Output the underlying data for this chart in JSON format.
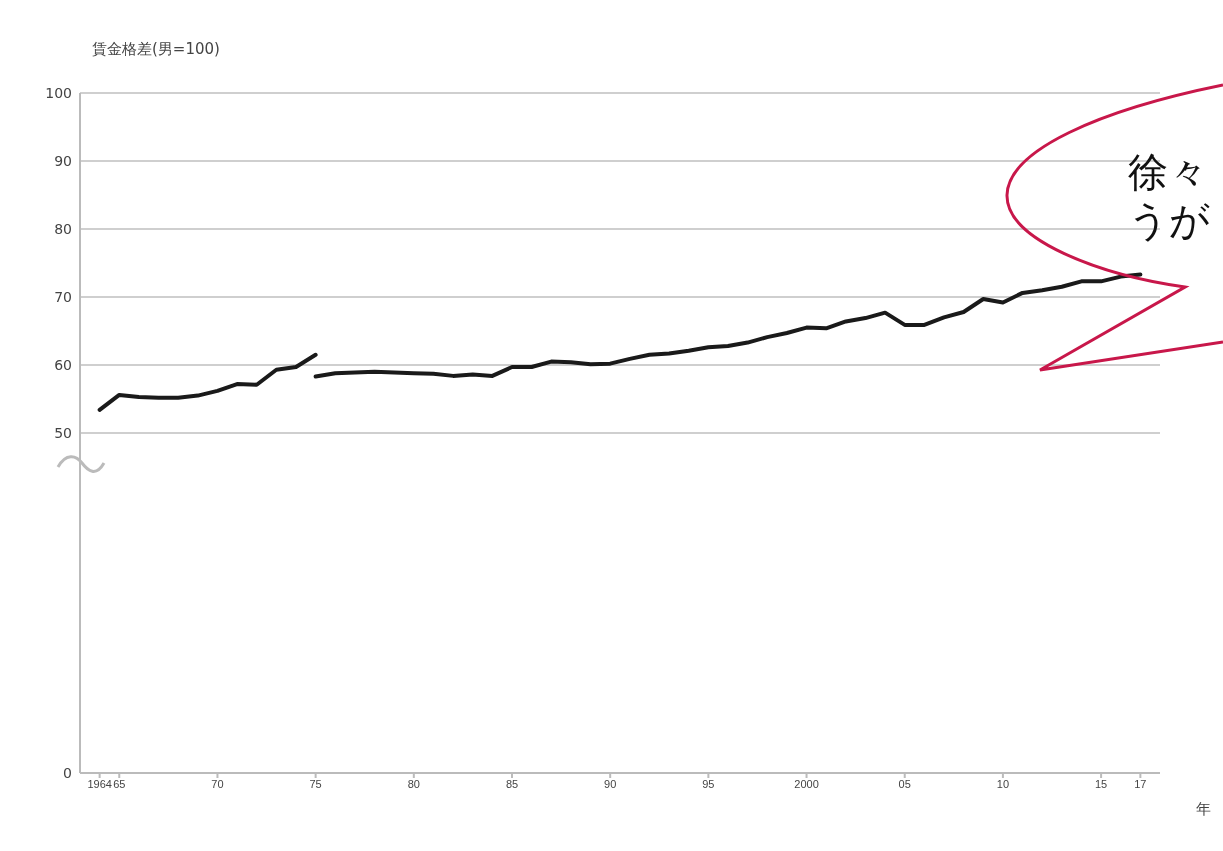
{
  "chart_data": {
    "type": "line",
    "ylabel": "賃金格差(男=100)",
    "xlabel": "年",
    "xlim": [
      1963,
      2018
    ],
    "xticks": [
      {
        "value": 1964,
        "label": "1964"
      },
      {
        "value": 1965,
        "label": "65"
      },
      {
        "value": 1970,
        "label": "70"
      },
      {
        "value": 1975,
        "label": "75"
      },
      {
        "value": 1980,
        "label": "80"
      },
      {
        "value": 1985,
        "label": "85"
      },
      {
        "value": 1990,
        "label": "90"
      },
      {
        "value": 1995,
        "label": "95"
      },
      {
        "value": 2000,
        "label": "2000"
      },
      {
        "value": 2005,
        "label": "05"
      },
      {
        "value": 2010,
        "label": "10"
      },
      {
        "value": 2015,
        "label": "15"
      },
      {
        "value": 2017,
        "label": "17"
      }
    ],
    "ylim": [
      0,
      100
    ],
    "yticks": [
      0,
      50,
      60,
      70,
      80,
      90,
      100
    ],
    "grid": "y",
    "legend": false,
    "annotations": [
      "徐々",
      "うが"
    ],
    "series": [
      {
        "color": "#1a1a1a",
        "x": [
          1964,
          1965,
          1966,
          1967,
          1968,
          1969,
          1970,
          1971,
          1972,
          1973,
          1974,
          1975
        ],
        "values": [
          53.4,
          55.6,
          55.3,
          55.2,
          55.2,
          55.5,
          56.2,
          57.2,
          57.1,
          59.3,
          59.7,
          61.5
        ]
      },
      {
        "color": "#1a1a1a",
        "x": [
          1975,
          1976,
          1977,
          1978,
          1979,
          1980,
          1981,
          1982,
          1983,
          1984,
          1985,
          1986,
          1987,
          1988,
          1989,
          1990,
          1991,
          1992,
          1993,
          1994,
          1995,
          1996,
          1997,
          1998,
          1999,
          2000,
          2001,
          2002,
          2003,
          2004,
          2005,
          2006,
          2007,
          2008,
          2009,
          2010,
          2011,
          2012,
          2013,
          2014,
          2015,
          2016,
          2017
        ],
        "values": [
          58.3,
          58.8,
          58.9,
          59.0,
          58.9,
          58.8,
          58.7,
          58.4,
          58.6,
          58.4,
          59.7,
          59.7,
          60.5,
          60.4,
          60.1,
          60.2,
          60.9,
          61.5,
          61.7,
          62.1,
          62.6,
          62.8,
          63.3,
          64.1,
          64.7,
          65.5,
          65.4,
          66.4,
          66.9,
          67.7,
          65.9,
          65.9,
          67.0,
          67.8,
          69.7,
          69.2,
          70.6,
          71.0,
          71.5,
          72.3,
          72.3,
          73.0,
          73.3
        ]
      }
    ]
  }
}
